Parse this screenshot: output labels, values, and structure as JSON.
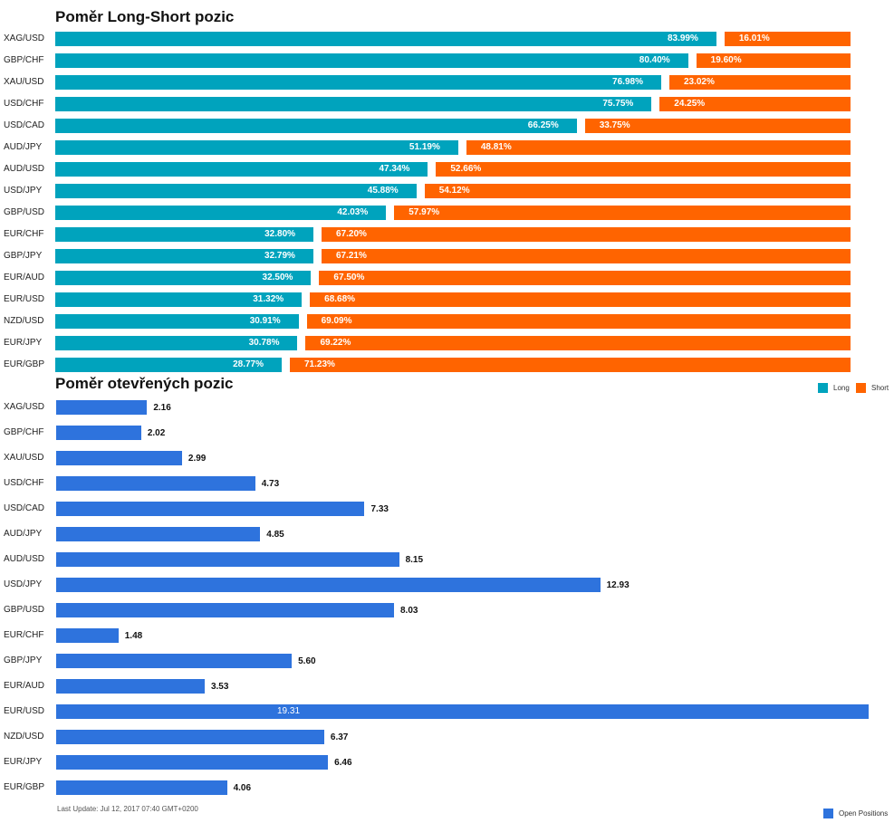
{
  "titles": {
    "ratio": "Poměr Long-Short pozic",
    "open": "Poměr otevřených pozic"
  },
  "legend": {
    "long": "Long",
    "short": "Short",
    "open": "Open Positions"
  },
  "colors": {
    "long": "#00a3bd",
    "short": "#ff6400",
    "open": "#2e73dd"
  },
  "footer": "Last Update: Jul 12, 2017 07:40 GMT+0200",
  "chart_data": [
    {
      "type": "bar",
      "orientation": "horizontal",
      "stacked": true,
      "title": "Poměr Long-Short pozic",
      "categories": [
        "XAG/USD",
        "GBP/CHF",
        "XAU/USD",
        "USD/CHF",
        "USD/CAD",
        "AUD/JPY",
        "AUD/USD",
        "USD/JPY",
        "GBP/USD",
        "EUR/CHF",
        "GBP/JPY",
        "EUR/AUD",
        "EUR/USD",
        "NZD/USD",
        "EUR/JPY",
        "EUR/GBP"
      ],
      "series": [
        {
          "name": "Long",
          "values": [
            83.99,
            80.4,
            76.98,
            75.75,
            66.25,
            51.19,
            47.34,
            45.88,
            42.03,
            32.8,
            32.79,
            32.5,
            31.32,
            30.91,
            30.78,
            28.77
          ]
        },
        {
          "name": "Short",
          "values": [
            16.01,
            19.6,
            23.02,
            24.25,
            33.75,
            48.81,
            52.66,
            54.12,
            57.97,
            67.2,
            67.21,
            67.5,
            68.68,
            69.09,
            69.22,
            71.23
          ]
        }
      ],
      "legend_position": "bottom-right"
    },
    {
      "type": "bar",
      "orientation": "horizontal",
      "title": "Poměr otevřených pozic",
      "categories": [
        "XAG/USD",
        "GBP/CHF",
        "XAU/USD",
        "USD/CHF",
        "USD/CAD",
        "AUD/JPY",
        "AUD/USD",
        "USD/JPY",
        "GBP/USD",
        "EUR/CHF",
        "GBP/JPY",
        "EUR/AUD",
        "EUR/USD",
        "NZD/USD",
        "EUR/JPY",
        "EUR/GBP"
      ],
      "series": [
        {
          "name": "Open Positions",
          "values": [
            2.16,
            2.02,
            2.99,
            4.73,
            7.33,
            4.85,
            8.15,
            12.93,
            8.03,
            1.48,
            5.6,
            3.53,
            19.31,
            6.37,
            6.46,
            4.06
          ]
        }
      ],
      "legend_position": "bottom-right"
    }
  ]
}
